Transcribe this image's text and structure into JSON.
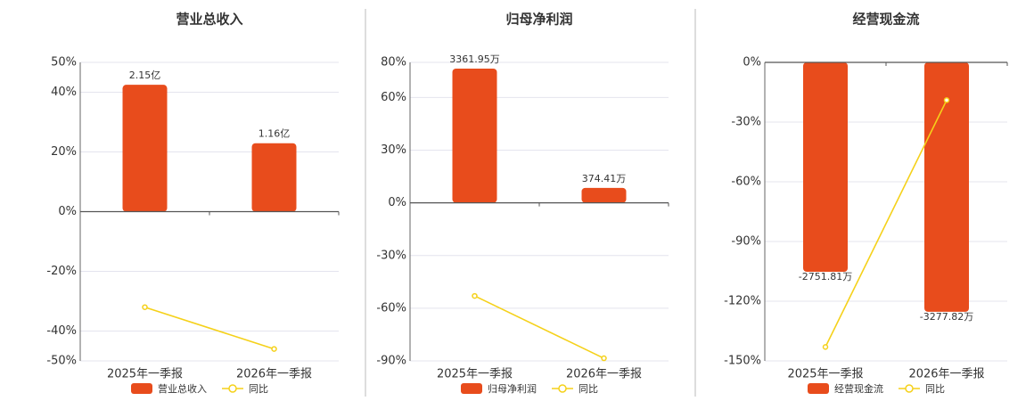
{
  "chart_data": [
    {
      "type": "bar",
      "title": "营业总收入",
      "categories": [
        "2025年一季报",
        "2026年一季报"
      ],
      "series": [
        {
          "name": "营业总收入",
          "color": "#e84c1c",
          "axis": "y2",
          "values": [
            2.15,
            1.16
          ],
          "value_labels": [
            "2.15亿",
            "1.16亿"
          ]
        },
        {
          "name": "同比",
          "color": "#f5d11a",
          "values": [
            -32,
            -46
          ]
        }
      ],
      "ylim": [
        -50,
        50
      ],
      "yticks": [
        {
          "value": -50,
          "label": "-50%"
        },
        {
          "value": -40,
          "label": "-40%"
        },
        {
          "value": -20,
          "label": "-20%"
        },
        {
          "value": 0,
          "label": "0%"
        },
        {
          "value": 20,
          "label": "20%"
        },
        {
          "value": 40,
          "label": "40%"
        },
        {
          "value": 50,
          "label": "50%"
        }
      ],
      "y2lim": [
        -2.53,
        2.53
      ],
      "grid": true
    },
    {
      "type": "bar",
      "title": "归母净利润",
      "categories": [
        "2025年一季报",
        "2026年一季报"
      ],
      "series": [
        {
          "name": "归母净利润",
          "color": "#e84c1c",
          "axis": "y2",
          "values": [
            3361.95,
            374.41
          ],
          "value_labels": [
            "3361.95万",
            "374.41万"
          ]
        },
        {
          "name": "同比",
          "color": "#f5d11a",
          "values": [
            -53,
            -88.5
          ]
        }
      ],
      "ylim": [
        -90,
        80
      ],
      "yticks": [
        {
          "value": -90,
          "label": "-90%"
        },
        {
          "value": -60,
          "label": "-60%"
        },
        {
          "value": -30,
          "label": "-30%"
        },
        {
          "value": 0,
          "label": "0%"
        },
        {
          "value": 30,
          "label": "30%"
        },
        {
          "value": 60,
          "label": "60%"
        },
        {
          "value": 80,
          "label": "80%"
        }
      ],
      "y2lim": [
        -3958,
        3518
      ],
      "grid": true
    },
    {
      "type": "bar",
      "title": "经营现金流",
      "categories": [
        "2025年一季报",
        "2026年一季报"
      ],
      "series": [
        {
          "name": "经营现金流",
          "color": "#e84c1c",
          "axis": "y2",
          "values": [
            -2751.81,
            -3277.82
          ],
          "value_labels": [
            "-2751.81万",
            "-3277.82万"
          ]
        },
        {
          "name": "同比",
          "color": "#f5d11a",
          "values": [
            -143,
            -19
          ]
        }
      ],
      "ylim": [
        -150,
        0
      ],
      "yticks": [
        {
          "value": -150,
          "label": "-150%"
        },
        {
          "value": -120,
          "label": "-120%"
        },
        {
          "value": -90,
          "label": "-90%"
        },
        {
          "value": -60,
          "label": "-60%"
        },
        {
          "value": -30,
          "label": "-30%"
        },
        {
          "value": 0,
          "label": "0%"
        }
      ],
      "y2lim": [
        -3923,
        0
      ],
      "grid": true
    }
  ]
}
